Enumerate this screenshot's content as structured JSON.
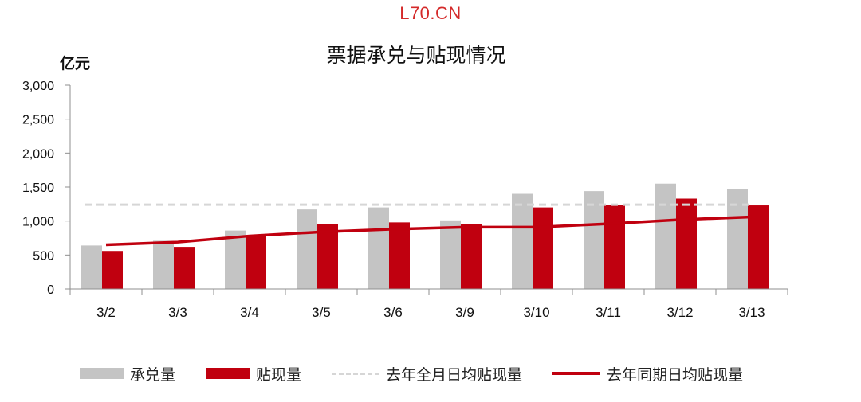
{
  "watermark": "L70.CN",
  "colors": {
    "watermark": "#d42a2a",
    "acceptance": "#c4c4c4",
    "discount": "#c0000f",
    "avg_full_month": "#d6d6d6",
    "avg_same_period": "#c0000f",
    "axis": "#8f8f8f",
    "text": "#111111"
  },
  "chart_data": {
    "type": "bar",
    "title": "票据承兑与贴现情况",
    "ylabel": "亿元",
    "xlabel": "",
    "ylim": [
      0,
      3000
    ],
    "yticks": [
      0,
      500,
      1000,
      1500,
      2000,
      2500,
      3000
    ],
    "ytick_labels": [
      "0",
      "500",
      "1,000",
      "1,500",
      "2,000",
      "2,500",
      "3,000"
    ],
    "categories": [
      "3/2",
      "3/3",
      "3/4",
      "3/5",
      "3/6",
      "3/9",
      "3/10",
      "3/11",
      "3/12",
      "3/13"
    ],
    "series": [
      {
        "name": "承兑量",
        "type": "bar",
        "color": "#c4c4c4",
        "values": [
          640,
          710,
          860,
          1170,
          1200,
          1010,
          1400,
          1440,
          1550,
          1470
        ]
      },
      {
        "name": "贴现量",
        "type": "bar",
        "color": "#c0000f",
        "values": [
          560,
          620,
          780,
          950,
          980,
          960,
          1200,
          1240,
          1330,
          1230
        ]
      },
      {
        "name": "去年全月日均贴现量",
        "type": "dashed-line",
        "color": "#d6d6d6",
        "values": [
          1240,
          1240,
          1240,
          1240,
          1240,
          1240,
          1240,
          1240,
          1240,
          1240
        ]
      },
      {
        "name": "去年同期日均贴现量",
        "type": "line",
        "color": "#c0000f",
        "values": [
          650,
          690,
          780,
          840,
          880,
          910,
          910,
          960,
          1020,
          1060
        ]
      }
    ],
    "grid": false,
    "legend_position": "bottom"
  }
}
